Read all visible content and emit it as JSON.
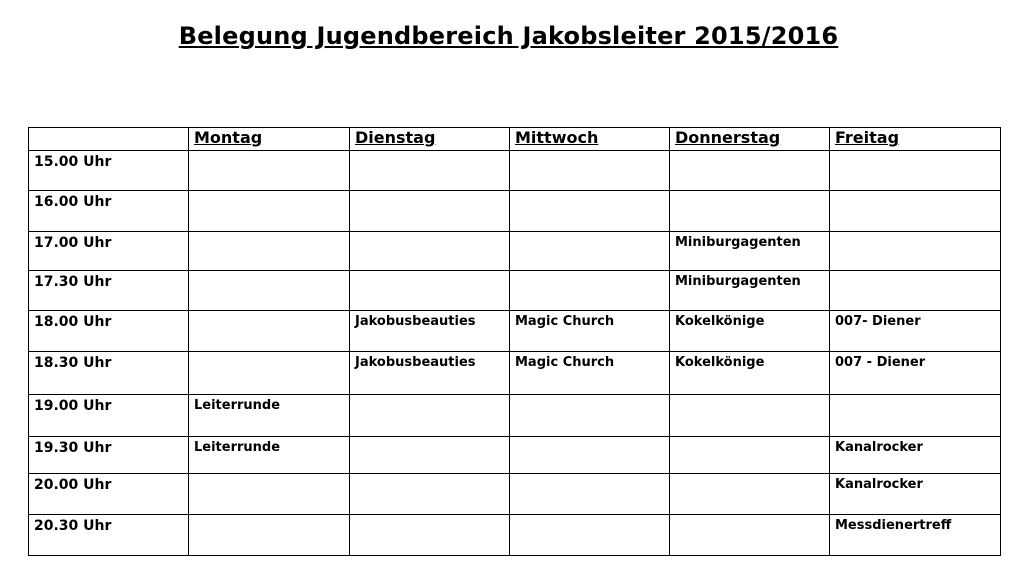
{
  "title": "Belegung Jugendbereich Jakobsleiter 2015/2016",
  "columns": [
    "",
    "Montag",
    "Dienstag",
    "Mittwoch",
    "Donnerstag",
    "Freitag"
  ],
  "rows": [
    {
      "time": "15.00 Uhr",
      "cells": [
        "",
        "",
        "",
        "",
        ""
      ]
    },
    {
      "time": "16.00 Uhr",
      "cells": [
        "",
        "",
        "",
        "",
        ""
      ]
    },
    {
      "time": "17.00 Uhr",
      "cells": [
        "",
        "",
        "",
        "Miniburgagenten",
        ""
      ]
    },
    {
      "time": "17.30 Uhr",
      "cells": [
        "",
        "",
        "",
        "Miniburgagenten",
        ""
      ]
    },
    {
      "time": "18.00 Uhr",
      "cells": [
        "",
        "Jakobusbeauties",
        "Magic Church",
        "Kokelkönige",
        "007- Diener"
      ]
    },
    {
      "time": "18.30 Uhr",
      "cells": [
        "",
        "Jakobusbeauties",
        "Magic Church",
        "Kokelkönige",
        "007 - Diener"
      ]
    },
    {
      "time": "19.00 Uhr",
      "cells": [
        "Leiterrunde",
        "",
        "",
        "",
        ""
      ]
    },
    {
      "time": "19.30 Uhr",
      "cells": [
        "Leiterrunde",
        "",
        "",
        "",
        "Kanalrocker"
      ]
    },
    {
      "time": "20.00 Uhr",
      "cells": [
        "",
        "",
        "",
        "",
        "Kanalrocker"
      ]
    },
    {
      "time": "20.30 Uhr",
      "cells": [
        "",
        "",
        "",
        "",
        "Messdienertreff"
      ]
    }
  ]
}
